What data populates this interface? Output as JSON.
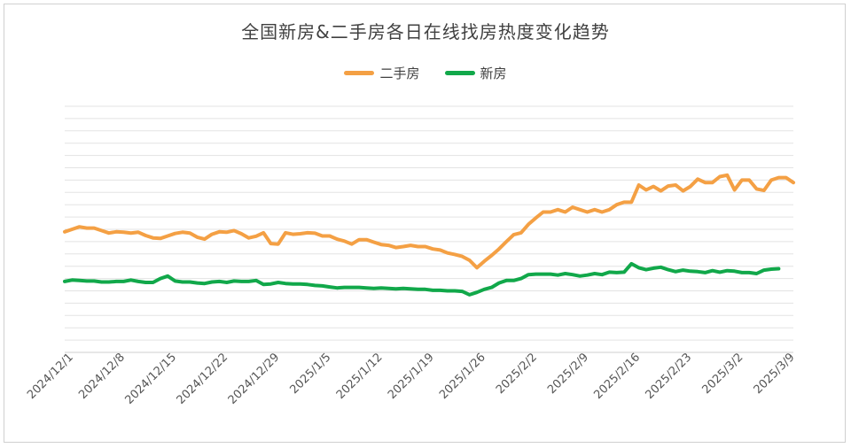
{
  "chart_data": {
    "type": "line",
    "title": "全国新房&二手房各日在线找房热度变化趋势",
    "xlabel": "",
    "ylabel": "",
    "grid": true,
    "legend_position": "top",
    "x_tick_labels": [
      "2024/12/1",
      "2024/12/8",
      "2024/12/15",
      "2024/12/22",
      "2024/12/29",
      "2025/1/5",
      "2025/1/12",
      "2025/1/19",
      "2025/1/26",
      "2025/2/2",
      "2025/2/9",
      "2025/2/16",
      "2025/2/23",
      "2025/3/2",
      "2025/3/9"
    ],
    "ylim": [
      0,
      100
    ],
    "series": [
      {
        "name": "二手房",
        "color": "#F4A044",
        "values": [
          49,
          50,
          51,
          50.5,
          50.5,
          49.5,
          48.5,
          49,
          48.8,
          48.5,
          48.8,
          47.5,
          46.5,
          46.3,
          47.3,
          48.3,
          48.8,
          48.5,
          46.8,
          46,
          48,
          49,
          48.8,
          49.5,
          48.2,
          46.5,
          47.2,
          48.6,
          44.2,
          44,
          48.6,
          48,
          48.2,
          48.6,
          48.4,
          47.3,
          47.3,
          46,
          45.2,
          44,
          45.8,
          45.8,
          44.8,
          43.8,
          43.5,
          42.6,
          43,
          43.5,
          43,
          43,
          42,
          41.6,
          40.4,
          39.8,
          39,
          37.4,
          34.4,
          37,
          39.4,
          42,
          45,
          47.8,
          48.6,
          52,
          54.6,
          57,
          57,
          58,
          57,
          59,
          58,
          57,
          58,
          57,
          58,
          60,
          61,
          61,
          68,
          66,
          67.4,
          65.6,
          67.6,
          68,
          65.6,
          67.4,
          70.4,
          69,
          69,
          71.4,
          72,
          66,
          70,
          70,
          66.4,
          65.8,
          70,
          71,
          71,
          69
        ]
      },
      {
        "name": "新房",
        "color": "#11A84A",
        "values": [
          28.8,
          29.4,
          29.2,
          29,
          29,
          28.6,
          28.6,
          28.8,
          28.8,
          29.4,
          28.8,
          28.4,
          28.4,
          30,
          31,
          29,
          28.6,
          28.6,
          28.2,
          28,
          28.6,
          28.8,
          28.4,
          29,
          28.8,
          28.8,
          29.2,
          27.6,
          27.8,
          28.4,
          28,
          27.8,
          27.8,
          27.6,
          27.2,
          27,
          26.6,
          26.2,
          26.4,
          26.4,
          26.4,
          26.2,
          26,
          26.2,
          26,
          25.8,
          26,
          25.8,
          25.6,
          25.6,
          25.2,
          25.2,
          25,
          25,
          24.8,
          23.4,
          24.4,
          25.6,
          26.4,
          28.2,
          29.2,
          29.2,
          30,
          31.6,
          31.8,
          31.8,
          31.8,
          31.4,
          32,
          31.6,
          31,
          31.4,
          32,
          31.6,
          32.6,
          32.4,
          32.6,
          36,
          34.4,
          33.6,
          34.2,
          34.6,
          33.6,
          32.8,
          33.4,
          33,
          32.8,
          32.4,
          33.2,
          32.6,
          33.2,
          33,
          32.4,
          32.4,
          32,
          33.4,
          33.8,
          34
        ]
      }
    ]
  }
}
